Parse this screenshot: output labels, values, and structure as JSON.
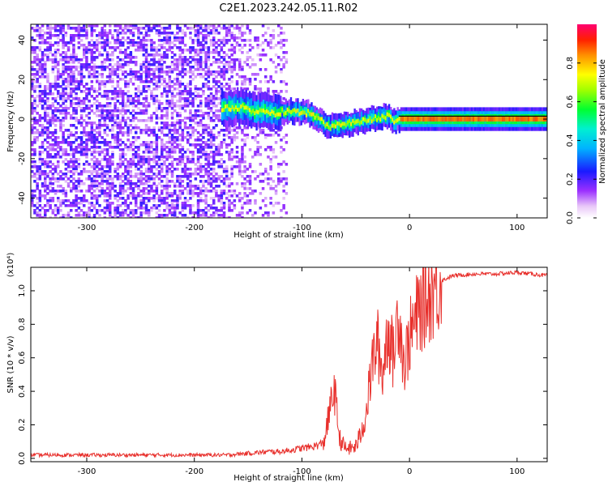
{
  "figure": {
    "title": "C2E1.2023.242.05.11.R02"
  },
  "chart_data": [
    {
      "type": "heatmap",
      "xlabel": "Height of straight line (km)",
      "ylabel": "Frequency (Hz)",
      "xlim": [
        -352,
        128
      ],
      "ylim": [
        -50,
        48
      ],
      "xticks": [
        -300,
        -200,
        -100,
        0,
        100
      ],
      "yticks": [
        -40,
        -20,
        0,
        20,
        40
      ],
      "colorbar": {
        "label": "Normalized spectral amplitude",
        "range": [
          0.0,
          1.0
        ],
        "ticks": [
          0.0,
          0.2,
          0.4,
          0.6,
          0.8
        ],
        "colormap": "rainbow (magenta-blue-cyan-green-yellow-red)"
      },
      "doppler_track": {
        "x": [
          -175,
          -165,
          -155,
          -145,
          -135,
          -125,
          -115,
          -105,
          -95,
          -85,
          -75,
          -65,
          -55,
          -45,
          -35,
          -25,
          -20,
          -15,
          -10,
          -5,
          0,
          20,
          40,
          60,
          80,
          100,
          128
        ],
        "y": [
          5,
          6,
          6,
          4,
          4,
          3,
          4,
          4,
          3,
          0,
          -4,
          -3,
          -2,
          -1,
          0,
          1,
          2,
          -1,
          0,
          0,
          0,
          0,
          0,
          0,
          0,
          0,
          0
        ]
      },
      "model_line": {
        "x": [
          -10,
          128
        ],
        "y": [
          1.5,
          1.5
        ]
      },
      "noise_region_end_km": -115,
      "colors": {
        "panel_border": "#000000",
        "model_line": "#000000"
      }
    },
    {
      "type": "line",
      "xlabel": "Height of straight line (km)",
      "ylabel": "SNR (10 * v/v)",
      "y_multiplier": "(x10⁴)",
      "xlim": [
        -352,
        128
      ],
      "ylim": [
        -0.02,
        1.14
      ],
      "xticks": [
        -300,
        -200,
        -100,
        0,
        100
      ],
      "yticks": [
        0.0,
        0.2,
        0.4,
        0.6,
        0.8,
        1.0
      ],
      "series": [
        {
          "color": "#e8302c",
          "x": [
            -352,
            -300,
            -250,
            -200,
            -170,
            -150,
            -130,
            -120,
            -110,
            -100,
            -90,
            -80,
            -75,
            -70,
            -65,
            -60,
            -55,
            -50,
            -45,
            -40,
            -35,
            -30,
            -25,
            -20,
            -15,
            -10,
            -5,
            0,
            10,
            20,
            30,
            40,
            60,
            80,
            100,
            128
          ],
          "y": [
            0.02,
            0.02,
            0.02,
            0.02,
            0.02,
            0.03,
            0.04,
            0.04,
            0.05,
            0.06,
            0.07,
            0.09,
            0.25,
            0.42,
            0.12,
            0.06,
            0.06,
            0.07,
            0.15,
            0.28,
            0.55,
            0.7,
            0.5,
            0.78,
            0.6,
            0.9,
            0.55,
            0.72,
            0.9,
            1.0,
            1.06,
            1.09,
            1.1,
            1.1,
            1.11,
            1.09
          ]
        }
      ],
      "colors": {
        "panel_border": "#000000"
      }
    }
  ]
}
